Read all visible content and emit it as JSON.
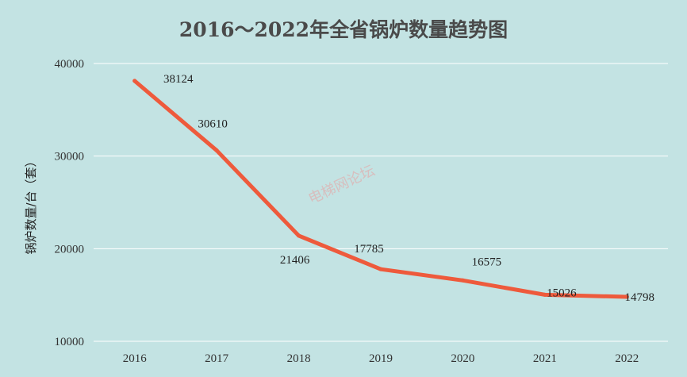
{
  "chart_data": {
    "type": "line",
    "title": "2016～2022年全省锅炉数量趋势图",
    "xlabel": "",
    "ylabel": "锅炉数量/台（套）",
    "categories": [
      "2016",
      "2017",
      "2018",
      "2019",
      "2020",
      "2021",
      "2022"
    ],
    "series": [
      {
        "values": [
          38124,
          30610,
          21406,
          17785,
          16575,
          15026,
          14798
        ]
      }
    ],
    "data_labels": [
      "38124",
      "30610",
      "21406",
      "17785",
      "16575",
      "15026",
      "14798"
    ],
    "ylim": [
      10000,
      40000
    ],
    "yticks": [
      10000,
      20000,
      30000,
      40000
    ],
    "ytick_labels": [
      "10000",
      "20000",
      "30000",
      "40000"
    ],
    "grid": true,
    "legend": "none",
    "colors": {
      "background": "#c3e3e3",
      "line": "#ee5a3c",
      "grid": "#ffffff"
    }
  },
  "watermark": "电梯网论坛"
}
